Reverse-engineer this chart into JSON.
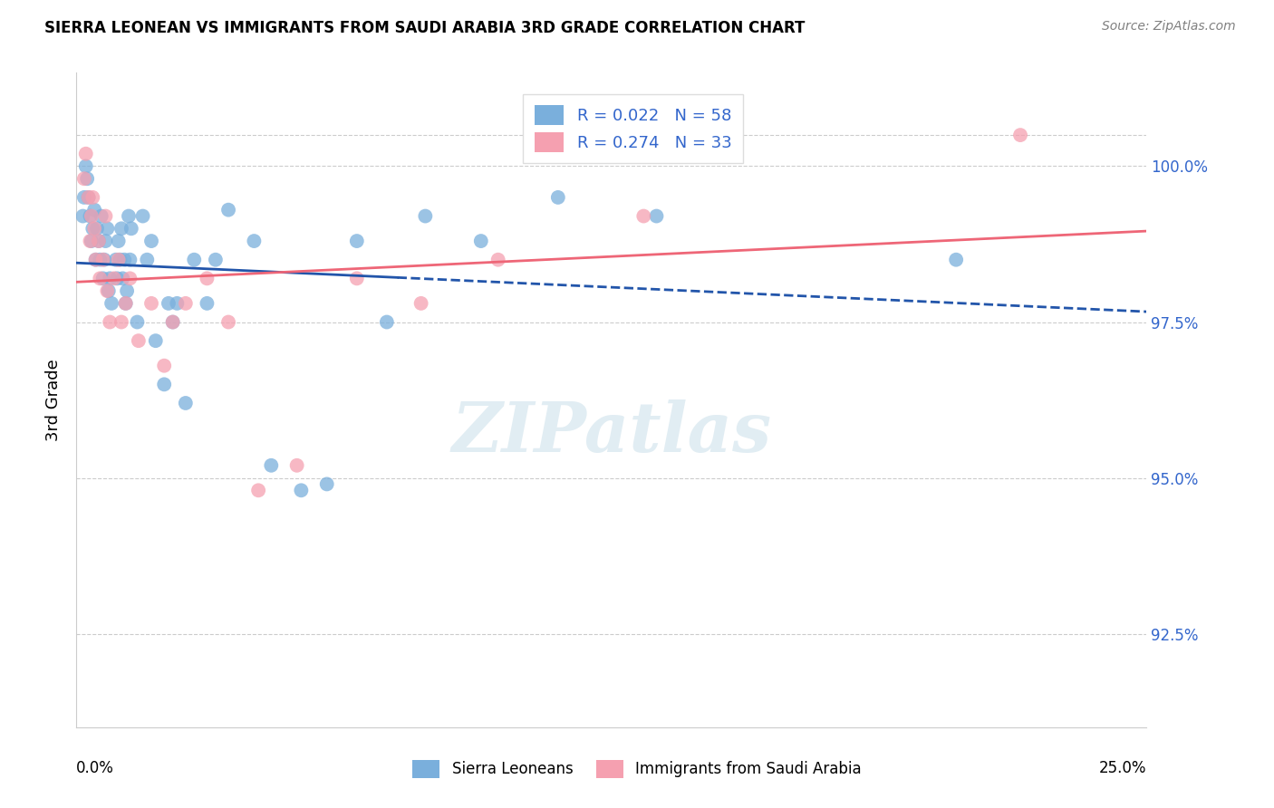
{
  "title": "SIERRA LEONEAN VS IMMIGRANTS FROM SAUDI ARABIA 3RD GRADE CORRELATION CHART",
  "source": "Source: ZipAtlas.com",
  "ylabel": "3rd Grade",
  "xlim": [
    0.0,
    25.0
  ],
  "ylim": [
    91.0,
    101.5
  ],
  "yticks": [
    92.5,
    95.0,
    97.5,
    100.0
  ],
  "ytick_labels": [
    "92.5%",
    "95.0%",
    "97.5%",
    "100.0%"
  ],
  "sierra_R": 0.022,
  "sierra_N": 58,
  "saudi_R": 0.274,
  "saudi_N": 33,
  "sierra_x": [
    0.15,
    0.18,
    0.22,
    0.25,
    0.28,
    0.32,
    0.35,
    0.38,
    0.42,
    0.45,
    0.48,
    0.52,
    0.55,
    0.58,
    0.62,
    0.65,
    0.68,
    0.72,
    0.75,
    0.78,
    0.82,
    0.92,
    0.95,
    0.98,
    1.02,
    1.05,
    1.08,
    1.12,
    1.15,
    1.18,
    1.22,
    1.25,
    1.28,
    1.42,
    1.55,
    1.65,
    1.75,
    1.85,
    2.05,
    2.15,
    2.25,
    2.35,
    2.55,
    2.75,
    3.05,
    3.25,
    3.55,
    4.15,
    4.55,
    5.25,
    5.85,
    6.55,
    7.25,
    8.15,
    9.45,
    11.25,
    13.55,
    20.55
  ],
  "sierra_y": [
    99.2,
    99.5,
    100.0,
    99.8,
    99.5,
    99.2,
    98.8,
    99.0,
    99.3,
    98.5,
    99.0,
    98.8,
    98.5,
    99.2,
    98.2,
    98.5,
    98.8,
    99.0,
    98.0,
    98.2,
    97.8,
    98.5,
    98.2,
    98.8,
    98.5,
    99.0,
    98.2,
    98.5,
    97.8,
    98.0,
    99.2,
    98.5,
    99.0,
    97.5,
    99.2,
    98.5,
    98.8,
    97.2,
    96.5,
    97.8,
    97.5,
    97.8,
    96.2,
    98.5,
    97.8,
    98.5,
    99.3,
    98.8,
    95.2,
    94.8,
    94.9,
    98.8,
    97.5,
    99.2,
    98.8,
    99.5,
    99.2,
    98.5
  ],
  "saudi_x": [
    0.18,
    0.22,
    0.28,
    0.32,
    0.35,
    0.38,
    0.42,
    0.45,
    0.52,
    0.55,
    0.62,
    0.68,
    0.72,
    0.78,
    0.88,
    0.98,
    1.05,
    1.15,
    1.25,
    1.45,
    1.75,
    2.05,
    2.25,
    2.55,
    3.05,
    3.55,
    4.25,
    5.15,
    6.55,
    8.05,
    9.85,
    13.25,
    22.05
  ],
  "saudi_y": [
    99.8,
    100.2,
    99.5,
    98.8,
    99.2,
    99.5,
    99.0,
    98.5,
    98.8,
    98.2,
    98.5,
    99.2,
    98.0,
    97.5,
    98.2,
    98.5,
    97.5,
    97.8,
    98.2,
    97.2,
    97.8,
    96.8,
    97.5,
    97.8,
    98.2,
    97.5,
    94.8,
    95.2,
    98.2,
    97.8,
    98.5,
    99.2,
    100.5
  ],
  "blue_scatter_color": "#7AAFDC",
  "pink_scatter_color": "#F5A0B0",
  "blue_line_color": "#2255AA",
  "pink_line_color": "#EE6677",
  "legend_text_color": "#3366CC",
  "right_tick_color": "#3366CC",
  "watermark_text": "ZIPatlas",
  "watermark_color": "#AACCDD",
  "background_color": "#FFFFFF",
  "grid_color": "#CCCCCC",
  "solid_end_x": 7.5
}
